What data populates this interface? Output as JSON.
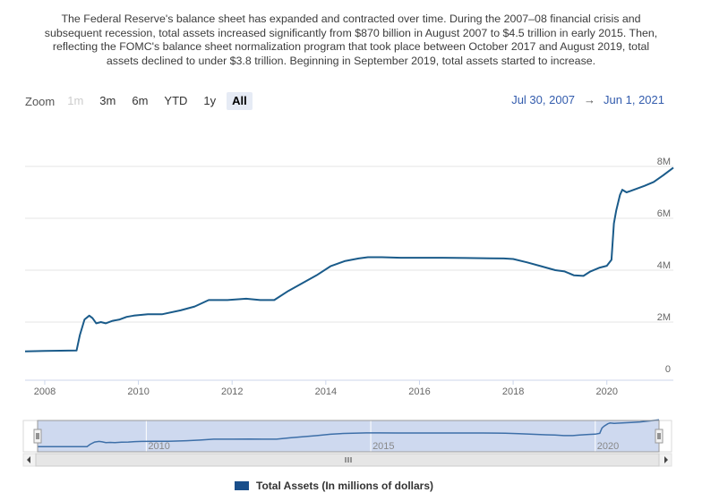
{
  "intro_text": "The Federal Reserve's balance sheet has expanded and contracted over time. During the 2007–08 financial crisis and subsequent recession, total assets increased significantly from $870 billion in August 2007 to $4.5 trillion in early 2015. Then, reflecting the FOMC's balance sheet normalization program that took place between October 2017 and August 2019, total assets declined to under $3.8 trillion. Beginning in September 2019, total assets started to increase.",
  "range_selector": {
    "zoom_label": "Zoom",
    "buttons": [
      {
        "label": "1m",
        "state": "disabled"
      },
      {
        "label": "3m",
        "state": "normal"
      },
      {
        "label": "6m",
        "state": "normal"
      },
      {
        "label": "YTD",
        "state": "normal"
      },
      {
        "label": "1y",
        "state": "normal"
      },
      {
        "label": "All",
        "state": "active"
      }
    ],
    "from_date": "Jul 30, 2007",
    "arrow": "→",
    "to_date": "Jun 1, 2021"
  },
  "colors": {
    "series": "#1a5b8a",
    "gridline": "#e6e6e6",
    "axis": "#ccd6eb",
    "navigator_mask": "#c5d2ec",
    "navigator_series": "#3d6fa8",
    "legend_swatch": "#1a4f8b"
  },
  "chart_data": {
    "type": "line",
    "title": "",
    "xlabel": "",
    "ylabel": "",
    "x_ticks": [
      "2008",
      "2010",
      "2012",
      "2014",
      "2016",
      "2018",
      "2020"
    ],
    "y_ticks": [
      "0",
      "2M",
      "4M",
      "6M",
      "8M"
    ],
    "xlim": [
      2007.58,
      2021.42
    ],
    "ylim": [
      0,
      8000000
    ],
    "grid": true,
    "legend_position": "bottom-center",
    "series": [
      {
        "name": "Total Assets (In millions of dollars)",
        "x": [
          2007.58,
          2008.0,
          2008.5,
          2008.68,
          2008.75,
          2008.85,
          2008.95,
          2009.02,
          2009.1,
          2009.2,
          2009.3,
          2009.45,
          2009.6,
          2009.75,
          2009.9,
          2010.2,
          2010.5,
          2010.9,
          2011.2,
          2011.5,
          2011.9,
          2012.3,
          2012.6,
          2012.9,
          2013.2,
          2013.5,
          2013.8,
          2014.1,
          2014.4,
          2014.7,
          2014.9,
          2015.2,
          2015.6,
          2016.0,
          2016.5,
          2017.0,
          2017.5,
          2017.8,
          2018.0,
          2018.3,
          2018.6,
          2018.9,
          2019.1,
          2019.3,
          2019.5,
          2019.65,
          2019.85,
          2020.0,
          2020.1,
          2020.15,
          2020.2,
          2020.28,
          2020.33,
          2020.42,
          2020.5,
          2020.8,
          2021.0,
          2021.2,
          2021.42
        ],
        "y": [
          870000,
          890000,
          900000,
          905000,
          1500000,
          2100000,
          2250000,
          2150000,
          1950000,
          2000000,
          1950000,
          2050000,
          2100000,
          2200000,
          2250000,
          2300000,
          2300000,
          2450000,
          2600000,
          2850000,
          2850000,
          2900000,
          2850000,
          2850000,
          3200000,
          3500000,
          3800000,
          4150000,
          4350000,
          4450000,
          4500000,
          4500000,
          4480000,
          4480000,
          4480000,
          4470000,
          4460000,
          4450000,
          4430000,
          4300000,
          4150000,
          4000000,
          3950000,
          3800000,
          3780000,
          3950000,
          4100000,
          4170000,
          4400000,
          5800000,
          6300000,
          6900000,
          7100000,
          7000000,
          7050000,
          7250000,
          7400000,
          7650000,
          7950000
        ]
      }
    ],
    "navigator": {
      "x_ticks": [
        "2010",
        "2015",
        "2020"
      ]
    }
  }
}
